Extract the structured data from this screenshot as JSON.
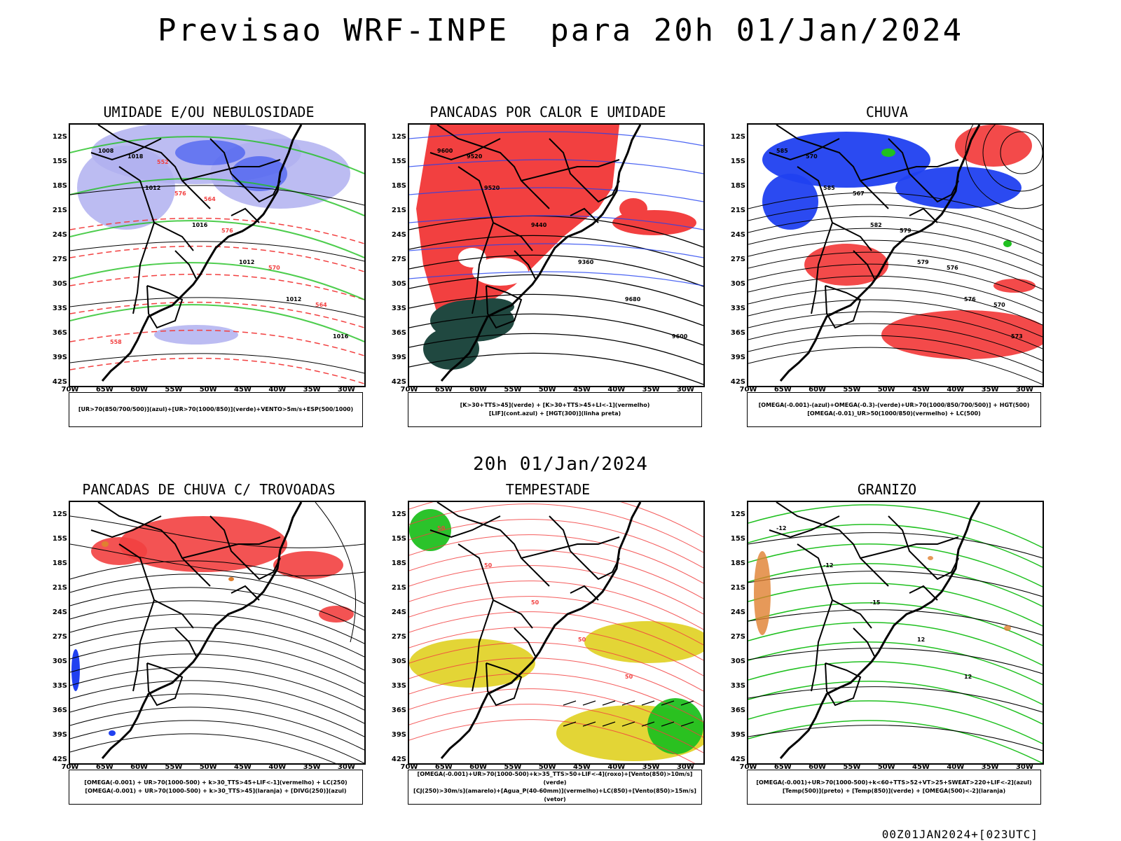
{
  "main_title": "Previsao WRF-INPE  para 20h 01/Jan/2024",
  "mid_title": "20h 01/Jan/2024",
  "footer": "00Z01JAN2024+[023UTC]",
  "lat_labels": [
    "12S",
    "15S",
    "18S",
    "21S",
    "24S",
    "27S",
    "30S",
    "33S",
    "36S",
    "39S",
    "42S"
  ],
  "lon_labels": [
    "70W",
    "65W",
    "60W",
    "55W",
    "50W",
    "45W",
    "40W",
    "35W",
    "30W"
  ],
  "colors": {
    "red": "#f24040",
    "blue": "#2040f0",
    "green": "#20c020",
    "lavender": "#b0b0f0",
    "yellow": "#e0d020",
    "darkteal": "#204840",
    "orange": "#e08030"
  },
  "panels": [
    {
      "title": "UMIDADE E/OU NEBULOSIDADE",
      "legend": [
        "[UR>70(850/700/500)](azul)+[UR>70(1000/850)](verde)+VENTO>5m/s+ESP(500/1000)"
      ],
      "labels": [
        "1008",
        "1012",
        "1016",
        "1012",
        "1012",
        "1016",
        "1018",
        "576",
        "576",
        "570",
        "564",
        "558",
        "552",
        "564"
      ]
    },
    {
      "title": "PANCADAS POR CALOR E UMIDADE",
      "legend": [
        "[K>30+TTS>45](verde) + [K>30+TTS>45+LI<-1](vermelho)",
        "[LIF](cont.azul) + [HGT(300)](linha preta)"
      ],
      "labels": [
        "9600",
        "9520",
        "9440",
        "9360",
        "9680",
        "9600",
        "9520"
      ]
    },
    {
      "title": "CHUVA",
      "legend": [
        "[OMEGA(-0.001)-(azul)+OMEGA(-0.3)-(verde)+UR>70(1000/850/700/500)] + HGT(500)",
        "[OMEGA(-0.01)_UR>50(1000/850)(vermelho) + LC(500)"
      ],
      "labels": [
        "585",
        "585",
        "582",
        "579",
        "576",
        "573",
        "570",
        "567",
        "579",
        "576",
        "570"
      ]
    },
    {
      "title": "PANCADAS DE CHUVA C/ TROVOADAS",
      "legend": [
        "[OMEGA(-0.001) + UR>70(1000-500) + k>30_TTS>45+LIF<-1](vermelho) + LC(250)",
        "[OMEGA(-0.001) + UR>70(1000-500) + k>30_TTS>45](laranja) + [DIVG(250)](azul)"
      ],
      "labels": []
    },
    {
      "title": "TEMPESTADE",
      "legend": [
        "[OMEGA(-0.001)+UR>70(1000-500)+k>35_TTS>50+LIF<-4](roxo)+[Vento(850)>10m/s](verde)",
        "[CJ(250)>30m/s](amarelo)+[Agua_P(40-60mm)](vermelho)+LC(850)+[Vento(850)>15m/s](vetor)"
      ],
      "labels": [
        "50",
        "50",
        "50",
        "50",
        "50"
      ]
    },
    {
      "title": "GRANIZO",
      "legend": [
        "[OMEGA(-0.001)+UR>70(1000-500)+k<60+TTS>52+VT>25+SWEAT>220+LIF<-2](azul)",
        "[Temp(500)](preto) + [Temp(850)](verde) + [OMEGA(500)<-2](laranja)"
      ],
      "labels": [
        "-12",
        "-12",
        "-15",
        "12",
        "12"
      ]
    }
  ]
}
